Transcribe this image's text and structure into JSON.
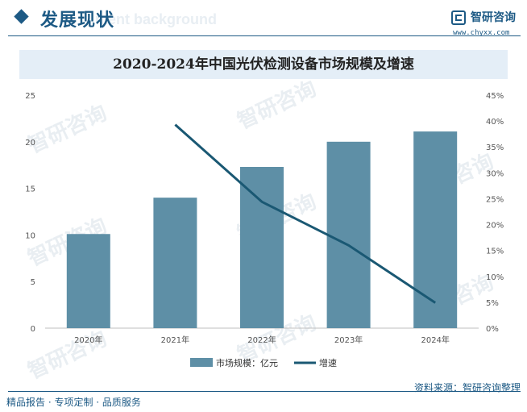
{
  "header": {
    "title": "发展现状",
    "ghost_text": "ment background",
    "logo_name": "智研咨询",
    "logo_url": "www.chyxx.com"
  },
  "watermark_text": "智研咨询",
  "footer": {
    "left": "精品报告 · 专项定制 · 品质服务",
    "source": "资料来源：智研咨询整理"
  },
  "colors": {
    "bar": "#5e8fa6",
    "line": "#1a5873",
    "brand": "#1d5a85"
  },
  "chart_data": {
    "type": "bar",
    "title": "2020-2024年中国光伏检测设备市场规模及增速",
    "categories": [
      "2020年",
      "2021年",
      "2022年",
      "2023年",
      "2024年"
    ],
    "series": [
      {
        "name": "市场规模：亿元",
        "type": "bar",
        "axis": "left",
        "values": [
          10.1,
          14.0,
          17.3,
          20.0,
          21.1
        ]
      },
      {
        "name": "增速",
        "type": "line",
        "axis": "right",
        "values": [
          null,
          39.3,
          24.4,
          16.0,
          4.9
        ]
      }
    ],
    "y_left": {
      "min": 0,
      "max": 25,
      "ticks": [
        "0",
        "5",
        "10",
        "15",
        "20",
        "25"
      ]
    },
    "y_right": {
      "min": 0,
      "max": 45,
      "ticks": [
        "0%",
        "5%",
        "10%",
        "15%",
        "20%",
        "25%",
        "30%",
        "35%",
        "40%",
        "45%"
      ]
    },
    "grid": false,
    "legend_position": "bottom"
  }
}
